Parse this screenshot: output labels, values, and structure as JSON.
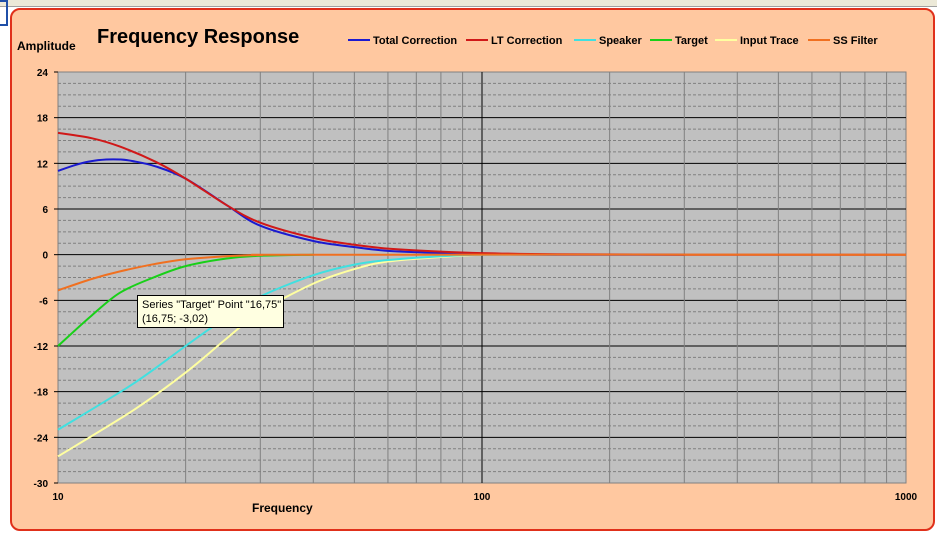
{
  "chart_data": {
    "type": "line",
    "title": "Frequency Response",
    "ylabel": "Amplitude",
    "xlabel": "Frequency",
    "x_scale": "log",
    "xlim": [
      10,
      1000
    ],
    "ylim": [
      -30,
      24
    ],
    "x_ticks": [
      "10",
      "100",
      "1000"
    ],
    "y_ticks": [
      "24",
      "18",
      "12",
      "6",
      "0",
      "-6",
      "-12",
      "-18",
      "-24",
      "-30"
    ],
    "grid": true,
    "legend_position": "top",
    "series": [
      {
        "name": "Total Correction",
        "color": "#1a1ad0",
        "x": [
          10,
          11,
          12,
          13,
          14,
          15,
          17,
          20,
          25,
          30,
          40,
          50,
          60,
          80,
          100,
          150,
          300
        ],
        "y": [
          11,
          11.8,
          12.3,
          12.5,
          12.5,
          12.3,
          11.6,
          10,
          6.5,
          3.8,
          1.8,
          1,
          0.5,
          0.2,
          0.05,
          0.0,
          0.0
        ]
      },
      {
        "name": "LT Correction",
        "color": "#d01818",
        "x": [
          10,
          12,
          14,
          17,
          20,
          25,
          30,
          40,
          50,
          60,
          80,
          100,
          150,
          300,
          1000
        ],
        "y": [
          16,
          15.3,
          14.2,
          12.2,
          10,
          6.5,
          4.2,
          2.2,
          1.3,
          0.8,
          0.4,
          0.2,
          0.05,
          0.0,
          0.0
        ]
      },
      {
        "name": "Speaker",
        "color": "#40e0e0",
        "x": [
          10,
          15,
          20,
          25,
          30,
          40,
          50,
          60,
          80,
          100,
          150
        ],
        "y": [
          -23,
          -17,
          -12,
          -8.2,
          -5.5,
          -2.7,
          -1.3,
          -0.7,
          -0.2,
          0,
          0
        ]
      },
      {
        "name": "Target",
        "color": "#18d018",
        "x": [
          10,
          12,
          14,
          16.75,
          20,
          25,
          30,
          40
        ],
        "y": [
          -12,
          -8,
          -5,
          -3.02,
          -1.5,
          -0.5,
          -0.15,
          0
        ]
      },
      {
        "name": "Input Trace",
        "color": "#ffffa0",
        "x": [
          10,
          15,
          20,
          25,
          30,
          40,
          50,
          60,
          80,
          100
        ],
        "y": [
          -26.5,
          -20.5,
          -15.5,
          -11,
          -7.5,
          -3.8,
          -1.9,
          -0.9,
          -0.3,
          0
        ]
      },
      {
        "name": "SS Filter",
        "color": "#f07020",
        "x": [
          10,
          12,
          14,
          17,
          20,
          25,
          30,
          40,
          1000
        ],
        "y": [
          -4.7,
          -3.2,
          -2.2,
          -1.2,
          -0.6,
          -0.2,
          -0.05,
          0,
          0
        ]
      }
    ],
    "tooltip": {
      "line1": "Series \"Target\" Point \"16,75\"",
      "line2": "(16,75; -3,02)"
    }
  }
}
